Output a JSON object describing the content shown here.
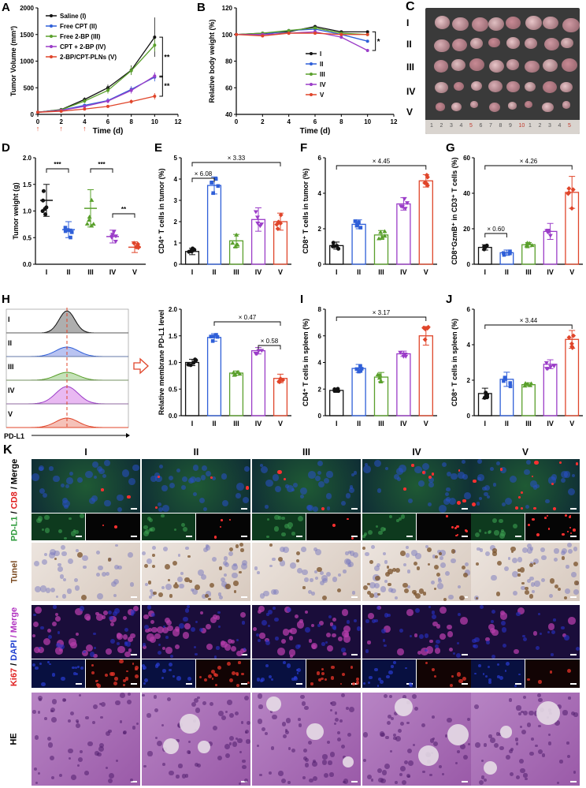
{
  "panel_labels": [
    "A",
    "B",
    "C",
    "D",
    "E",
    "F",
    "G",
    "H",
    "I",
    "J",
    "K"
  ],
  "colors": {
    "I": "#111111",
    "II": "#2f5fd8",
    "III": "#5aa02c",
    "IV": "#9b3dc8",
    "V": "#e0452a"
  },
  "groups": [
    "I",
    "II",
    "III",
    "IV",
    "V"
  ],
  "panelA": {
    "ylabel": "Tumor Volume (mm³)",
    "xlabel": "Time (d)",
    "yticks": [
      "0",
      "500",
      "1000",
      "1500",
      "2000"
    ],
    "xticks": [
      "0",
      "2",
      "4",
      "6",
      "8",
      "10",
      "12"
    ],
    "legend": [
      "Saline (I)",
      "Free CPT (II)",
      "Free 2-BP (III)",
      "CPT + 2-BP (IV)",
      "2-BP/CPT-PLNs (V)"
    ],
    "sig": [
      "**",
      "**"
    ]
  },
  "panelB": {
    "ylabel": "Relative body weight (%)",
    "xlabel": "Time (d)",
    "yticks": [
      "40",
      "60",
      "80",
      "100",
      "120"
    ],
    "xticks": [
      "0",
      "2",
      "4",
      "6",
      "8",
      "10",
      "12"
    ],
    "legend": [
      "I",
      "II",
      "III",
      "IV",
      "V"
    ],
    "sig": "*"
  },
  "panelC": {
    "rows": [
      "I",
      "II",
      "III",
      "IV",
      "V"
    ],
    "ruler": [
      "1",
      "2",
      "3",
      "4",
      "5",
      "6",
      "7",
      "8",
      "9",
      "10",
      "1",
      "2",
      "3",
      "4",
      "5"
    ]
  },
  "panelD": {
    "ylabel": "Tumor weight (g)",
    "yticks": [
      "0.0",
      "0.5",
      "1.0",
      "1.5",
      "2.0"
    ],
    "sig": [
      "***",
      "***",
      "**"
    ]
  },
  "panelE": {
    "ylabel": "CD4⁺ T cells in tumor (%)",
    "yticks": [
      "0",
      "1",
      "2",
      "3",
      "4",
      "5"
    ],
    "ann": [
      "× 3.33",
      "× 6.08"
    ]
  },
  "panelF": {
    "ylabel": "CD8⁺ T cells in tumor (%)",
    "yticks": [
      "0",
      "2",
      "4",
      "6"
    ],
    "ann": [
      "× 4.45"
    ]
  },
  "panelG": {
    "ylabel": "CD8⁺GzmB⁺ in CD3⁺ T cells (%)",
    "yticks": [
      "0",
      "20",
      "40",
      "60"
    ],
    "ann": [
      "× 4.26",
      "× 0.60"
    ]
  },
  "panelH": {
    "xlabel": "PD-L1",
    "rows": [
      "I",
      "II",
      "III",
      "IV",
      "V"
    ]
  },
  "panelH2": {
    "ylabel": "Relative membrane PD-L1 level",
    "yticks": [
      "0.0",
      "0.5",
      "1.0",
      "1.5",
      "2.0"
    ],
    "ann": [
      "× 0.47",
      "× 0.58"
    ]
  },
  "panelI": {
    "ylabel": "CD4⁺ T cells in spleen (%)",
    "yticks": [
      "0",
      "2",
      "4",
      "6",
      "8"
    ],
    "ann": [
      "× 3.17"
    ]
  },
  "panelJ": {
    "ylabel": "CD8⁺ T cells in spleen (%)",
    "yticks": [
      "0",
      "2",
      "4",
      "6"
    ],
    "ann": [
      "× 3.44"
    ]
  },
  "panelK": {
    "cols": [
      "I",
      "II",
      "III",
      "IV",
      "V"
    ],
    "rows": [
      {
        "label1": "PD-L1",
        "label2": " / ",
        "label3": "CD8",
        "label4": " / Merge"
      },
      {
        "label1": "Tunel"
      },
      {
        "label1": "Ki67",
        "label2": " / ",
        "label3": "DAPI",
        "label4": " / Merge"
      },
      {
        "label1": "HE"
      }
    ]
  },
  "chart_data": [
    {
      "type": "line",
      "panel": "A",
      "xlabel": "Time (d)",
      "ylabel": "Tumor Volume (mm³)",
      "ylim": [
        0,
        2000
      ],
      "xlim": [
        0,
        12
      ],
      "x": [
        0,
        2,
        4,
        6,
        8,
        10
      ],
      "series": [
        {
          "name": "Saline (I)",
          "values": [
            40,
            90,
            280,
            500,
            830,
            1450
          ],
          "err": [
            10,
            20,
            40,
            60,
            90,
            370
          ]
        },
        {
          "name": "Free CPT (II)",
          "values": [
            40,
            80,
            170,
            260,
            470,
            700
          ],
          "err": [
            10,
            15,
            30,
            50,
            60,
            80
          ]
        },
        {
          "name": "Free 2-BP (III)",
          "values": [
            40,
            85,
            250,
            450,
            820,
            1300
          ],
          "err": [
            10,
            15,
            40,
            60,
            80,
            120
          ]
        },
        {
          "name": "CPT + 2-BP (IV)",
          "values": [
            40,
            75,
            150,
            250,
            450,
            720
          ],
          "err": [
            10,
            15,
            25,
            40,
            60,
            70
          ]
        },
        {
          "name": "2-BP/CPT-PLNs (V)",
          "values": [
            40,
            60,
            100,
            150,
            240,
            340
          ],
          "err": [
            8,
            10,
            20,
            30,
            40,
            60
          ]
        }
      ]
    },
    {
      "type": "line",
      "panel": "B",
      "xlabel": "Time (d)",
      "ylabel": "Relative body weight (%)",
      "ylim": [
        40,
        120
      ],
      "xlim": [
        0,
        12
      ],
      "x": [
        0,
        2,
        4,
        6,
        8,
        10
      ],
      "series": [
        {
          "name": "I",
          "values": [
            100,
            101,
            102,
            106,
            102,
            102
          ]
        },
        {
          "name": "II",
          "values": [
            100,
            100,
            103,
            104,
            100,
            95
          ]
        },
        {
          "name": "III",
          "values": [
            100,
            101,
            103,
            105,
            101,
            100
          ]
        },
        {
          "name": "IV",
          "values": [
            100,
            100,
            101,
            102,
            98,
            88
          ]
        },
        {
          "name": "V",
          "values": [
            100,
            99,
            101,
            101,
            100,
            100
          ]
        }
      ]
    },
    {
      "type": "bar",
      "panel": "D",
      "categories": [
        "I",
        "II",
        "III",
        "IV",
        "V"
      ],
      "values": [
        1.2,
        0.65,
        1.05,
        0.52,
        0.32
      ],
      "err": [
        0.3,
        0.15,
        0.35,
        0.12,
        0.1
      ],
      "ylim": [
        0,
        2
      ]
    },
    {
      "type": "bar",
      "panel": "E",
      "categories": [
        "I",
        "II",
        "III",
        "IV",
        "V"
      ],
      "values": [
        0.6,
        3.7,
        1.1,
        2.1,
        2.0
      ],
      "err": [
        0.15,
        0.4,
        0.3,
        0.55,
        0.4
      ],
      "ylim": [
        0,
        5
      ]
    },
    {
      "type": "bar",
      "panel": "F",
      "categories": [
        "I",
        "II",
        "III",
        "IV",
        "V"
      ],
      "values": [
        1.05,
        2.25,
        1.65,
        3.4,
        4.7
      ],
      "err": [
        0.2,
        0.25,
        0.25,
        0.35,
        0.35
      ],
      "ylim": [
        0,
        6
      ]
    },
    {
      "type": "bar",
      "panel": "G",
      "categories": [
        "I",
        "II",
        "III",
        "IV",
        "V"
      ],
      "values": [
        9.5,
        6.5,
        11,
        18.5,
        40.5
      ],
      "err": [
        1.5,
        1.5,
        1.2,
        4.5,
        9
      ],
      "ylim": [
        0,
        60
      ]
    },
    {
      "type": "bar",
      "panel": "H2",
      "categories": [
        "I",
        "II",
        "III",
        "IV",
        "V"
      ],
      "values": [
        1.0,
        1.47,
        0.8,
        1.22,
        0.7
      ],
      "err": [
        0.06,
        0.07,
        0.04,
        0.06,
        0.08
      ],
      "ylim": [
        0,
        2
      ]
    },
    {
      "type": "bar",
      "panel": "I",
      "categories": [
        "I",
        "II",
        "III",
        "IV",
        "V"
      ],
      "values": [
        1.9,
        3.55,
        2.9,
        4.65,
        6.0
      ],
      "err": [
        0.15,
        0.3,
        0.35,
        0.2,
        0.7
      ],
      "ylim": [
        0,
        8
      ]
    },
    {
      "type": "bar",
      "panel": "J",
      "categories": [
        "I",
        "II",
        "III",
        "IV",
        "V"
      ],
      "values": [
        1.25,
        2.05,
        1.75,
        2.9,
        4.3
      ],
      "err": [
        0.3,
        0.4,
        0.1,
        0.25,
        0.5
      ],
      "ylim": [
        0,
        6
      ]
    }
  ]
}
